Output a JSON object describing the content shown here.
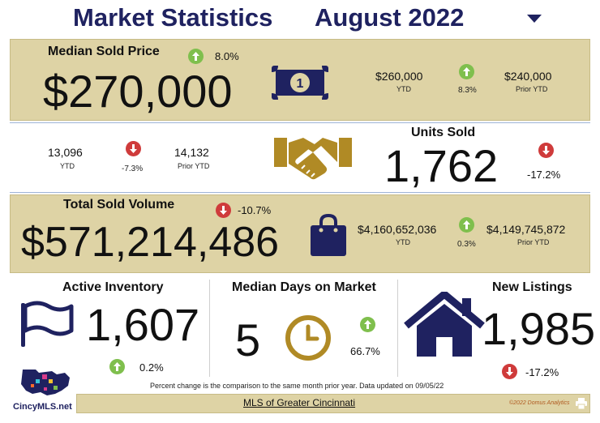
{
  "header": {
    "title": "Market Statistics",
    "period": "August 2022"
  },
  "median_sold_price": {
    "label": "Median Sold Price",
    "value": "$270,000",
    "change": "8.0%",
    "change_direction": "up",
    "ytd_value": "$260,000",
    "ytd_label": "YTD",
    "ytd_change": "8.3%",
    "ytd_change_direction": "up",
    "prior_ytd_value": "$240,000",
    "prior_ytd_label": "Prior YTD"
  },
  "units_sold": {
    "label": "Units Sold",
    "value": "1,762",
    "change": "-17.2%",
    "change_direction": "down",
    "ytd_value": "13,096",
    "ytd_label": "YTD",
    "ytd_change": "-7.3%",
    "ytd_change_direction": "down",
    "prior_ytd_value": "14,132",
    "prior_ytd_label": "Prior YTD"
  },
  "total_sold_volume": {
    "label": "Total Sold Volume",
    "value": "$571,214,486",
    "change": "-10.7%",
    "change_direction": "down",
    "ytd_value": "$4,160,652,036",
    "ytd_label": "YTD",
    "ytd_change": "0.3%",
    "ytd_change_direction": "up",
    "prior_ytd_value": "$4,149,745,872",
    "prior_ytd_label": "Prior YTD"
  },
  "active_inventory": {
    "label": "Active Inventory",
    "value": "1,607",
    "change": "0.2%",
    "change_direction": "up"
  },
  "median_days": {
    "label": "Median Days on Market",
    "value": "5",
    "change": "66.7%",
    "change_direction": "up"
  },
  "new_listings": {
    "label": "New Listings",
    "value": "1,985",
    "change": "-17.2%",
    "change_direction": "down"
  },
  "footer": {
    "note": "Percent change is the comparison to the same month prior year. Data updated on 09/05/22",
    "link": "MLS of Greater Cincinnati",
    "copyright": "©2022 Domus Analytics",
    "logo_text": "CincyMLS.net"
  },
  "icons": {
    "dropdown": "triangle-down-icon",
    "money": "dollar-bill-icon",
    "handshake": "handshake-icon",
    "bag": "shopping-bag-icon",
    "flag": "flag-icon",
    "clock": "clock-icon",
    "house": "house-icon",
    "print": "printer-icon"
  },
  "colors": {
    "navy": "#1f2260",
    "gold": "#b08a25",
    "band": "#ded3a5",
    "up": "#7fbf4d",
    "down": "#cf3b3b"
  }
}
